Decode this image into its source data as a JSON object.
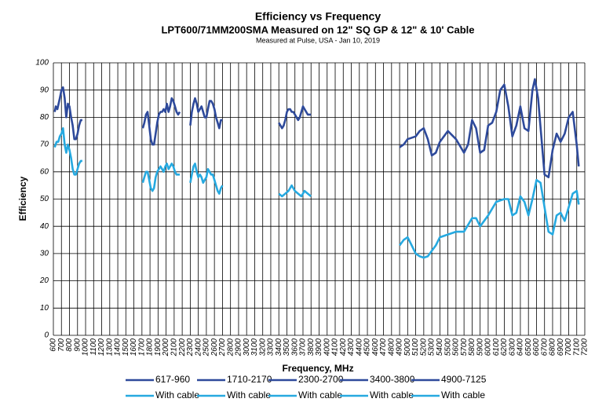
{
  "chart_data": {
    "type": "line",
    "title": "Efficiency vs Frequency",
    "subtitle": "LPT600/71MM200SMA Measured on 12\" SQ GP & 12\" & 10' Cable",
    "note": "Measured at Pulse, USA - Jan 10, 2019",
    "x_label": "Frequency, MHz",
    "y_label": "Efficiency",
    "xlim": [
      600,
      7200
    ],
    "xticks": [
      600,
      700,
      800,
      900,
      1000,
      1100,
      1200,
      1300,
      1400,
      1500,
      1600,
      1700,
      1800,
      1900,
      2000,
      2100,
      2200,
      2300,
      2400,
      2500,
      2600,
      2700,
      2800,
      2900,
      3000,
      3100,
      3200,
      3300,
      3400,
      3500,
      3600,
      3700,
      3800,
      3900,
      4000,
      4100,
      4200,
      4300,
      4400,
      4500,
      4600,
      4700,
      4800,
      4900,
      5000,
      5100,
      5200,
      5300,
      5400,
      5500,
      5600,
      5700,
      5800,
      5900,
      6000,
      6100,
      6200,
      6300,
      6400,
      6500,
      6600,
      6700,
      6800,
      6900,
      7000,
      7100,
      7200
    ],
    "ylim": [
      0,
      100
    ],
    "yticks": [
      0,
      10,
      20,
      30,
      40,
      50,
      60,
      70,
      80,
      90,
      100
    ],
    "grid": true,
    "legend": "bottom",
    "series": [
      {
        "name": "617-960",
        "color": "#2e4a9b",
        "x": [
          617,
          630,
          650,
          680,
          700,
          720,
          740,
          760,
          780,
          800,
          820,
          840,
          860,
          880,
          900,
          920,
          940,
          960
        ],
        "values": [
          82,
          84,
          83,
          87,
          90,
          91,
          87,
          80,
          85,
          84,
          80,
          77,
          72,
          72,
          74,
          77,
          79,
          79
        ]
      },
      {
        "name": "1710-2170",
        "color": "#2e4a9b",
        "x": [
          1710,
          1730,
          1750,
          1770,
          1790,
          1810,
          1830,
          1850,
          1870,
          1890,
          1910,
          1930,
          1950,
          1970,
          1990,
          2010,
          2030,
          2050,
          2070,
          2090,
          2110,
          2130,
          2150,
          2170
        ],
        "values": [
          76,
          78,
          81,
          82,
          77,
          72,
          70,
          70,
          74,
          78,
          81,
          82,
          82,
          83,
          82,
          85,
          82,
          84,
          87,
          86,
          84,
          82,
          81,
          82
        ]
      },
      {
        "name": "2300-2700",
        "color": "#2e4a9b",
        "x": [
          2300,
          2320,
          2340,
          2360,
          2380,
          2400,
          2420,
          2440,
          2460,
          2480,
          2500,
          2520,
          2540,
          2560,
          2580,
          2600,
          2620,
          2640,
          2660,
          2680,
          2700
        ],
        "values": [
          77,
          82,
          85,
          87,
          85,
          82,
          83,
          84,
          82,
          80,
          80,
          83,
          86,
          86,
          85,
          83,
          80,
          78,
          76,
          79,
          79
        ]
      },
      {
        "name": "3400-3800",
        "color": "#2e4a9b",
        "x": [
          3400,
          3420,
          3440,
          3460,
          3480,
          3500,
          3520,
          3540,
          3560,
          3580,
          3600,
          3620,
          3640,
          3660,
          3680,
          3700,
          3720,
          3740,
          3760,
          3780,
          3800
        ],
        "values": [
          78,
          77,
          76,
          77,
          79,
          82,
          83,
          83,
          82,
          82,
          81,
          80,
          79,
          80,
          82,
          84,
          83,
          82,
          81,
          81,
          81
        ]
      },
      {
        "name": "4900-7125",
        "color": "#2e4a9b",
        "x": [
          4900,
          4950,
          5000,
          5100,
          5150,
          5200,
          5250,
          5300,
          5350,
          5400,
          5500,
          5600,
          5700,
          5750,
          5800,
          5850,
          5900,
          5950,
          6000,
          6050,
          6100,
          6150,
          6200,
          6250,
          6300,
          6350,
          6400,
          6450,
          6500,
          6550,
          6580,
          6620,
          6700,
          6750,
          6800,
          6850,
          6900,
          6950,
          7000,
          7050,
          7100,
          7125
        ],
        "values": [
          69,
          70,
          72,
          73,
          75,
          76,
          72,
          66,
          67,
          71,
          75,
          72,
          67,
          70,
          79,
          76,
          67,
          68,
          77,
          78,
          82,
          90,
          92,
          84,
          73,
          77,
          84,
          76,
          75,
          90,
          94,
          87,
          59,
          58,
          68,
          74,
          71,
          74,
          80,
          82,
          70,
          62
        ]
      },
      {
        "name": "With cable",
        "color": "#26a9e0",
        "x": [
          617,
          640,
          660,
          680,
          700,
          720,
          740,
          760,
          780,
          800,
          820,
          840,
          860,
          880,
          900,
          920,
          940,
          960
        ],
        "values": [
          69,
          71,
          71,
          73,
          74,
          76,
          70,
          67,
          70,
          68,
          65,
          61,
          59,
          59,
          61,
          63,
          64,
          64
        ]
      },
      {
        "name": "With cable",
        "color": "#26a9e0",
        "x": [
          1710,
          1730,
          1750,
          1770,
          1790,
          1810,
          1830,
          1850,
          1870,
          1890,
          1910,
          1930,
          1950,
          1970,
          1990,
          2010,
          2030,
          2050,
          2070,
          2090,
          2110,
          2130,
          2150,
          2170
        ],
        "values": [
          56,
          58,
          60,
          60,
          57,
          54,
          53,
          54,
          58,
          60,
          61,
          62,
          61,
          60,
          62,
          63,
          61,
          62,
          63,
          62,
          60,
          59,
          59,
          59
        ]
      },
      {
        "name": "With cable",
        "color": "#26a9e0",
        "x": [
          2300,
          2320,
          2340,
          2360,
          2380,
          2400,
          2420,
          2440,
          2460,
          2480,
          2500,
          2520,
          2540,
          2560,
          2580,
          2600,
          2620,
          2640,
          2660,
          2680,
          2700
        ],
        "values": [
          56,
          59,
          62,
          63,
          60,
          58,
          59,
          58,
          56,
          57,
          58,
          61,
          60,
          59,
          59,
          57,
          55,
          53,
          52,
          54,
          55
        ]
      },
      {
        "name": "With cable",
        "color": "#26a9e0",
        "x": [
          3400,
          3440,
          3480,
          3520,
          3560,
          3600,
          3640,
          3680,
          3720,
          3760,
          3800
        ],
        "values": [
          52,
          51,
          52,
          53,
          55,
          53,
          52,
          51,
          53,
          52,
          51
        ]
      },
      {
        "name": "With cable",
        "color": "#26a9e0",
        "x": [
          4900,
          4950,
          5000,
          5050,
          5100,
          5150,
          5200,
          5250,
          5300,
          5350,
          5400,
          5500,
          5600,
          5700,
          5800,
          5850,
          5900,
          6000,
          6100,
          6200,
          6250,
          6300,
          6350,
          6400,
          6450,
          6500,
          6550,
          6600,
          6650,
          6700,
          6750,
          6800,
          6850,
          6900,
          6950,
          7000,
          7050,
          7100,
          7125
        ],
        "values": [
          33,
          35,
          36,
          33,
          30,
          29,
          28.5,
          29,
          31,
          33,
          36,
          37,
          38,
          38,
          43,
          43,
          40,
          44,
          49,
          50,
          50,
          44,
          45,
          51,
          49,
          44,
          50,
          57,
          56,
          47,
          38,
          37,
          44,
          45,
          42,
          47,
          52,
          53,
          48
        ]
      }
    ]
  }
}
